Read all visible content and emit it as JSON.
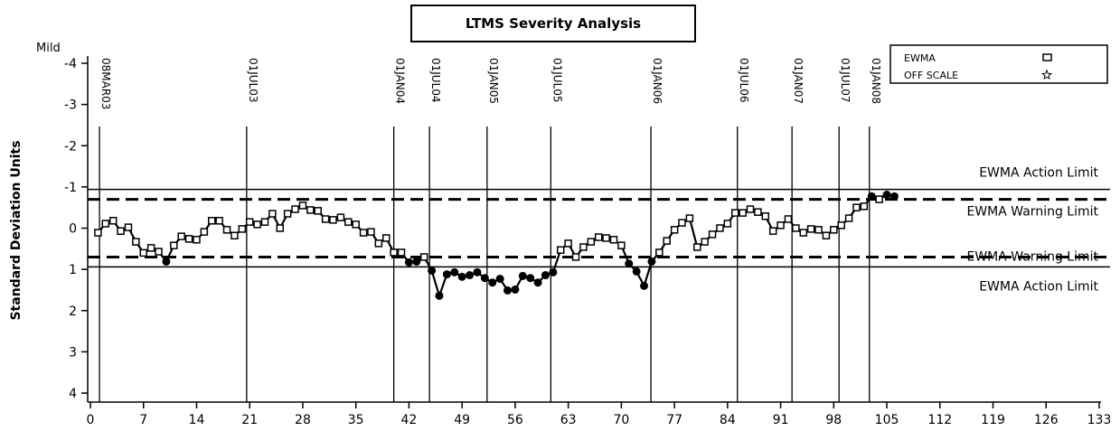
{
  "chart_data": {
    "type": "line",
    "title": "LTMS Severity Analysis",
    "y_top_label": "Mild",
    "ylabel": "Standard Deviation Units",
    "xlim": [
      0,
      133
    ],
    "xticks": [
      0,
      7,
      14,
      21,
      28,
      35,
      42,
      49,
      56,
      63,
      70,
      77,
      84,
      91,
      98,
      105,
      112,
      119,
      126,
      133
    ],
    "ylim": [
      -4,
      4
    ],
    "y_reversed": true,
    "yticks": [
      -4,
      -3,
      -2,
      -1,
      0,
      1,
      2,
      3,
      4
    ],
    "x": [
      1,
      2,
      3,
      4,
      5,
      6,
      7,
      8,
      9,
      10,
      11,
      12,
      13,
      14,
      15,
      16,
      17,
      18,
      19,
      20,
      21,
      22,
      23,
      24,
      25,
      26,
      27,
      28,
      29,
      30,
      31,
      32,
      33,
      34,
      35,
      36,
      37,
      38,
      39,
      40,
      41,
      42,
      43,
      44,
      45,
      46,
      47,
      48,
      49,
      50,
      51,
      52,
      53,
      54,
      55,
      56,
      57,
      58,
      59,
      60,
      61,
      62,
      63,
      64,
      65,
      66,
      67,
      68,
      69,
      70,
      71,
      72,
      73,
      74,
      75,
      76,
      77,
      78,
      79,
      80,
      81,
      82,
      83,
      84,
      85,
      86,
      87,
      88,
      89,
      90,
      91,
      92,
      93,
      94,
      95,
      96,
      97,
      98,
      99,
      100,
      101,
      102,
      103,
      104,
      105,
      106
    ],
    "series": [
      {
        "name": "EWMA",
        "marker": "square",
        "color": "#000000",
        "values": [
          0.11,
          -0.11,
          -0.18,
          0.07,
          -0.02,
          0.33,
          0.6,
          0.48,
          0.57,
          0.81,
          0.42,
          0.2,
          0.26,
          0.28,
          0.09,
          -0.18,
          -0.18,
          0.04,
          0.18,
          0.02,
          -0.15,
          -0.09,
          -0.15,
          -0.35,
          0,
          -0.35,
          -0.46,
          -0.55,
          -0.44,
          -0.42,
          -0.22,
          -0.2,
          -0.26,
          -0.15,
          -0.09,
          0.11,
          0.09,
          0.37,
          0.24,
          0.59,
          0.59,
          0.83,
          0.81,
          0.7,
          1.03,
          1.64,
          1.12,
          1.07,
          1.18,
          1.14,
          1.07,
          1.21,
          1.32,
          1.23,
          1.51,
          1.49,
          1.16,
          1.21,
          1.32,
          1.14,
          1.07,
          0.53,
          0.37,
          0.7,
          0.46,
          0.33,
          0.22,
          0.24,
          0.28,
          0.42,
          0.86,
          1.05,
          1.4,
          0.81,
          0.59,
          0.31,
          0.04,
          -0.13,
          -0.24,
          0.46,
          0.33,
          0.15,
          0,
          -0.11,
          -0.37,
          -0.37,
          -0.46,
          -0.39,
          -0.29,
          0.07,
          -0.07,
          -0.22,
          0,
          0.11,
          0.02,
          0.04,
          0.18,
          0.04,
          -0.07,
          -0.24,
          -0.5,
          -0.53,
          -0.77,
          -0.7,
          -0.81,
          -0.77
        ]
      }
    ],
    "legend_extra": [
      {
        "name": "OFF SCALE",
        "marker": "star"
      }
    ],
    "legend_position": "top-right",
    "reference_lines": [
      {
        "x": 1.2,
        "label": "08MAR03"
      },
      {
        "x": 20.6,
        "label": "01JUL03"
      },
      {
        "x": 40.0,
        "label": "01JAN04"
      },
      {
        "x": 44.7,
        "label": "01JUL04"
      },
      {
        "x": 52.3,
        "label": "01JAN05"
      },
      {
        "x": 60.7,
        "label": "01JUL05"
      },
      {
        "x": 73.9,
        "label": "01JAN06"
      },
      {
        "x": 85.3,
        "label": "01JUL06"
      },
      {
        "x": 92.5,
        "label": "01JAN07"
      },
      {
        "x": 98.7,
        "label": "01JUL07"
      },
      {
        "x": 102.7,
        "label": "01JAN08"
      }
    ],
    "limits": [
      {
        "value": -0.94,
        "label": "EWMA Action Limit",
        "dashed": false
      },
      {
        "value": -0.7,
        "label": "EWMA Warning Limit",
        "dashed": true
      },
      {
        "value": 0.7,
        "label": "EWMA Warning Limit",
        "dashed": true
      },
      {
        "value": 0.94,
        "label": "EWMA Action Limit",
        "dashed": false
      }
    ]
  }
}
